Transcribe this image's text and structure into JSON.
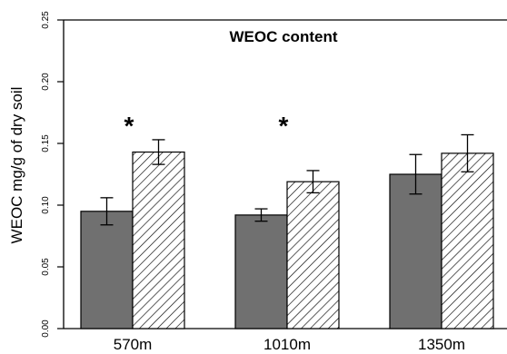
{
  "chart_data": {
    "type": "bar",
    "title": "WEOC content",
    "ylabel": "WEOC mg/g of dry soil",
    "xlabel": "",
    "categories": [
      "570m",
      "1010m",
      "1350m"
    ],
    "ylim": [
      0,
      0.25
    ],
    "yticks": [
      "0.00",
      "0.05",
      "0.10",
      "0.15",
      "0.20",
      "0.25"
    ],
    "series": [
      {
        "fill": "solid-gray",
        "values": [
          0.095,
          0.092,
          0.125
        ],
        "errors": [
          0.011,
          0.005,
          0.016
        ]
      },
      {
        "fill": "hatched",
        "values": [
          0.143,
          0.119,
          0.142
        ],
        "errors": [
          0.01,
          0.009,
          0.015
        ]
      }
    ],
    "annotations": [
      {
        "category": "570m",
        "text": "*"
      },
      {
        "category": "1010m",
        "text": "*"
      }
    ],
    "grid": false,
    "legend": "none",
    "colors": {
      "solid_bar": "#707070",
      "hatch_line": "#000000",
      "hatch_bg": "#ffffff"
    }
  }
}
